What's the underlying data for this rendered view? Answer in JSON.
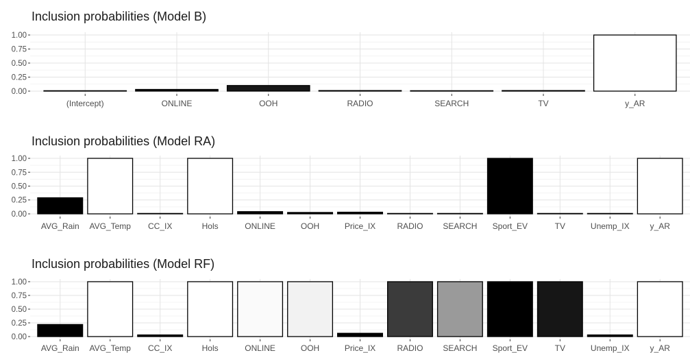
{
  "chart_data": [
    {
      "type": "bar",
      "title": "Inclusion probabilities (Model B)",
      "xlabel": "",
      "ylabel": "",
      "ylim": [
        0,
        1
      ],
      "yticks": [
        "0.00",
        "0.25",
        "0.50",
        "0.75",
        "1.00"
      ],
      "grid": true,
      "categories": [
        "(Intercept)",
        "ONLINE",
        "OOH",
        "RADIO",
        "SEARCH",
        "TV",
        "y_AR"
      ],
      "values": [
        0.0,
        0.03,
        0.1,
        0.01,
        0.005,
        0.01,
        1.0
      ],
      "colors": [
        "#000000",
        "#000000",
        "#171717",
        "#000000",
        "#000000",
        "#000000",
        "#ffffff"
      ]
    },
    {
      "type": "bar",
      "title": "Inclusion probabilities (Model RA)",
      "xlabel": "",
      "ylabel": "",
      "ylim": [
        0,
        1
      ],
      "yticks": [
        "0.00",
        "0.25",
        "0.50",
        "0.75",
        "1.00"
      ],
      "grid": true,
      "categories": [
        "AVG_Rain",
        "AVG_Temp",
        "CC_IX",
        "Hols",
        "ONLINE",
        "OOH",
        "Price_IX",
        "RADIO",
        "SEARCH",
        "Sport_EV",
        "TV",
        "Unemp_IX",
        "y_AR"
      ],
      "values": [
        0.29,
        1.0,
        0.005,
        1.0,
        0.04,
        0.025,
        0.03,
        0.005,
        0.005,
        1.0,
        0.005,
        0.005,
        1.0
      ],
      "colors": [
        "#000000",
        "#ffffff",
        "#000000",
        "#ffffff",
        "#000000",
        "#000000",
        "#000000",
        "#000000",
        "#000000",
        "#000000",
        "#000000",
        "#000000",
        "#ffffff"
      ]
    },
    {
      "type": "bar",
      "title": "Inclusion probabilities (Model RF)",
      "xlabel": "",
      "ylabel": "",
      "ylim": [
        0,
        1
      ],
      "yticks": [
        "0.00",
        "0.25",
        "0.50",
        "0.75",
        "1.00"
      ],
      "grid": true,
      "categories": [
        "AVG_Rain",
        "AVG_Temp",
        "CC_IX",
        "Hols",
        "ONLINE",
        "OOH",
        "Price_IX",
        "RADIO",
        "SEARCH",
        "Sport_EV",
        "TV",
        "Unemp_IX",
        "y_AR"
      ],
      "values": [
        0.22,
        1.0,
        0.03,
        1.0,
        1.0,
        1.0,
        0.06,
        1.0,
        1.0,
        1.0,
        1.0,
        0.03,
        1.0
      ],
      "colors": [
        "#000000",
        "#ffffff",
        "#000000",
        "#ffffff",
        "#fafafa",
        "#f2f2f2",
        "#000000",
        "#3b3b3b",
        "#9a9a9a",
        "#000000",
        "#161616",
        "#000000",
        "#ffffff"
      ]
    }
  ]
}
